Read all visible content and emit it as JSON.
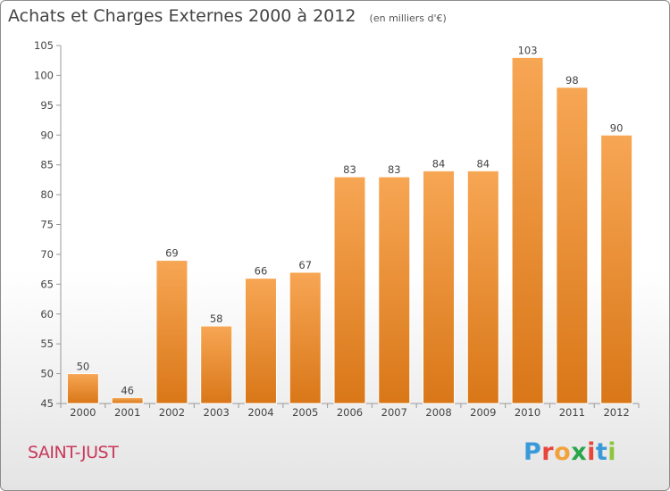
{
  "header": {
    "title": "Achats et Charges Externes 2000 à 2012",
    "unit": "(en milliers d'€)"
  },
  "footer": {
    "commune": "SAINT-JUST",
    "brand": [
      "P",
      "r",
      "o",
      "x",
      "i",
      "t",
      "i"
    ]
  },
  "colors": {
    "bar_top": "#f7a654",
    "bar_bottom": "#d97718",
    "commune": "#c8385a",
    "brand": [
      "#3a9ad9",
      "#e8463c",
      "#f2a23a",
      "#2aa64a",
      "#e8463c",
      "#3a9ad9",
      "#8cc63e"
    ]
  },
  "chart_data": {
    "type": "bar",
    "categories": [
      "2000",
      "2001",
      "2002",
      "2003",
      "2004",
      "2005",
      "2006",
      "2007",
      "2008",
      "2009",
      "2010",
      "2011",
      "2012"
    ],
    "values": [
      50,
      46,
      69,
      58,
      66,
      67,
      83,
      83,
      84,
      84,
      103,
      98,
      90
    ],
    "title": "Achats et Charges Externes 2000 à 2012",
    "subtitle": "(en milliers d'€)",
    "xlabel": "",
    "ylabel": "",
    "ylim": [
      45,
      105
    ],
    "yticks": [
      45,
      50,
      55,
      60,
      65,
      70,
      75,
      80,
      85,
      90,
      95,
      100,
      105
    ],
    "grid": false,
    "data_labels": true,
    "legend": "none"
  }
}
